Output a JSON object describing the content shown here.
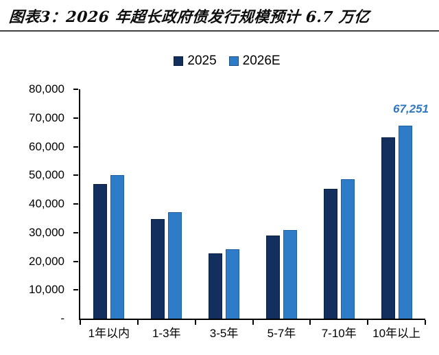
{
  "header": {
    "title": "图表3：2026 年超长政府债发行规模预计 6.7 万亿"
  },
  "chart_data": {
    "type": "bar",
    "title": "图表3：2026 年超长政府债发行规模预计 6.7 万亿",
    "categories": [
      "1年以内",
      "1-3年",
      "3-5年",
      "5-7年",
      "7-10年",
      "10年以上"
    ],
    "series": [
      {
        "name": "2025",
        "color": "#132F5E",
        "values": [
          46900,
          34800,
          22700,
          29000,
          45300,
          63300
        ]
      },
      {
        "name": "2026E",
        "color": "#2E7CC7",
        "values": [
          50000,
          37100,
          24300,
          31000,
          48600,
          67251
        ]
      }
    ],
    "xlabel": "",
    "ylabel": "",
    "ylim": [
      0,
      80000
    ],
    "y_tick_step": 10000,
    "y_tick_labels": [
      "80,000",
      "70,000",
      "60,000",
      "50,000",
      "40,000",
      "30,000",
      "20,000",
      "10,000",
      "-"
    ],
    "legend_position": "top-center",
    "grid": false,
    "axis_color": "#000000",
    "annotation": {
      "text": "67,251",
      "series": "2026E",
      "category": "10年以上",
      "color": "#2E76BD"
    }
  }
}
